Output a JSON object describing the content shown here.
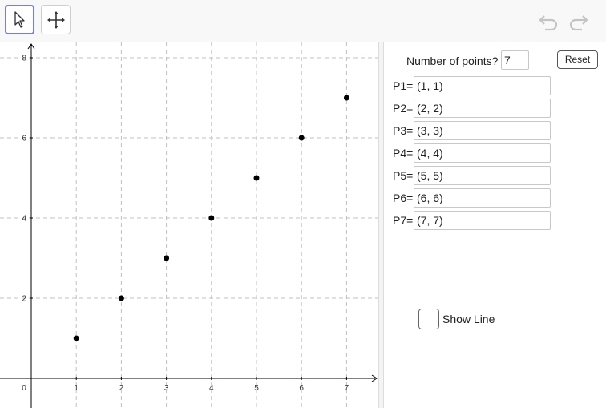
{
  "toolbar": {
    "tools": [
      {
        "name": "move-pointer",
        "icon": "cursor-arrow-icon",
        "active": true
      },
      {
        "name": "move-graphics-view",
        "icon": "four-way-arrow-icon",
        "active": false
      }
    ],
    "undo_icon": "undo-icon",
    "redo_icon": "redo-icon"
  },
  "graph": {
    "x_ticks": [
      "0",
      "1",
      "2",
      "3",
      "4",
      "5",
      "6",
      "7"
    ],
    "y_ticks": [
      "2",
      "4",
      "6",
      "8"
    ],
    "points": [
      {
        "x": 1,
        "y": 1
      },
      {
        "x": 2,
        "y": 2
      },
      {
        "x": 3,
        "y": 3
      },
      {
        "x": 4,
        "y": 4
      },
      {
        "x": 5,
        "y": 5
      },
      {
        "x": 6,
        "y": 6
      },
      {
        "x": 7,
        "y": 7
      }
    ],
    "grid": true,
    "grid_style": "dashed",
    "point_color": "#000000"
  },
  "panel": {
    "num_points_label": "Number of points?",
    "num_points_value": "7",
    "reset_label": "Reset",
    "point_rows": [
      {
        "label": "P1=",
        "value": "(1, 1)"
      },
      {
        "label": "P2=",
        "value": "(2, 2)"
      },
      {
        "label": "P3=",
        "value": "(3, 3)"
      },
      {
        "label": "P4=",
        "value": "(4, 4)"
      },
      {
        "label": "P5=",
        "value": "(5, 5)"
      },
      {
        "label": "P6=",
        "value": "(6, 6)"
      },
      {
        "label": "P7=",
        "value": "(7, 7)"
      }
    ],
    "show_line_label": "Show Line",
    "show_line_checked": false
  },
  "colors": {
    "active_tool_border": "#7a7fd6",
    "grid": "#c0c0c0",
    "axis": "#000000"
  }
}
